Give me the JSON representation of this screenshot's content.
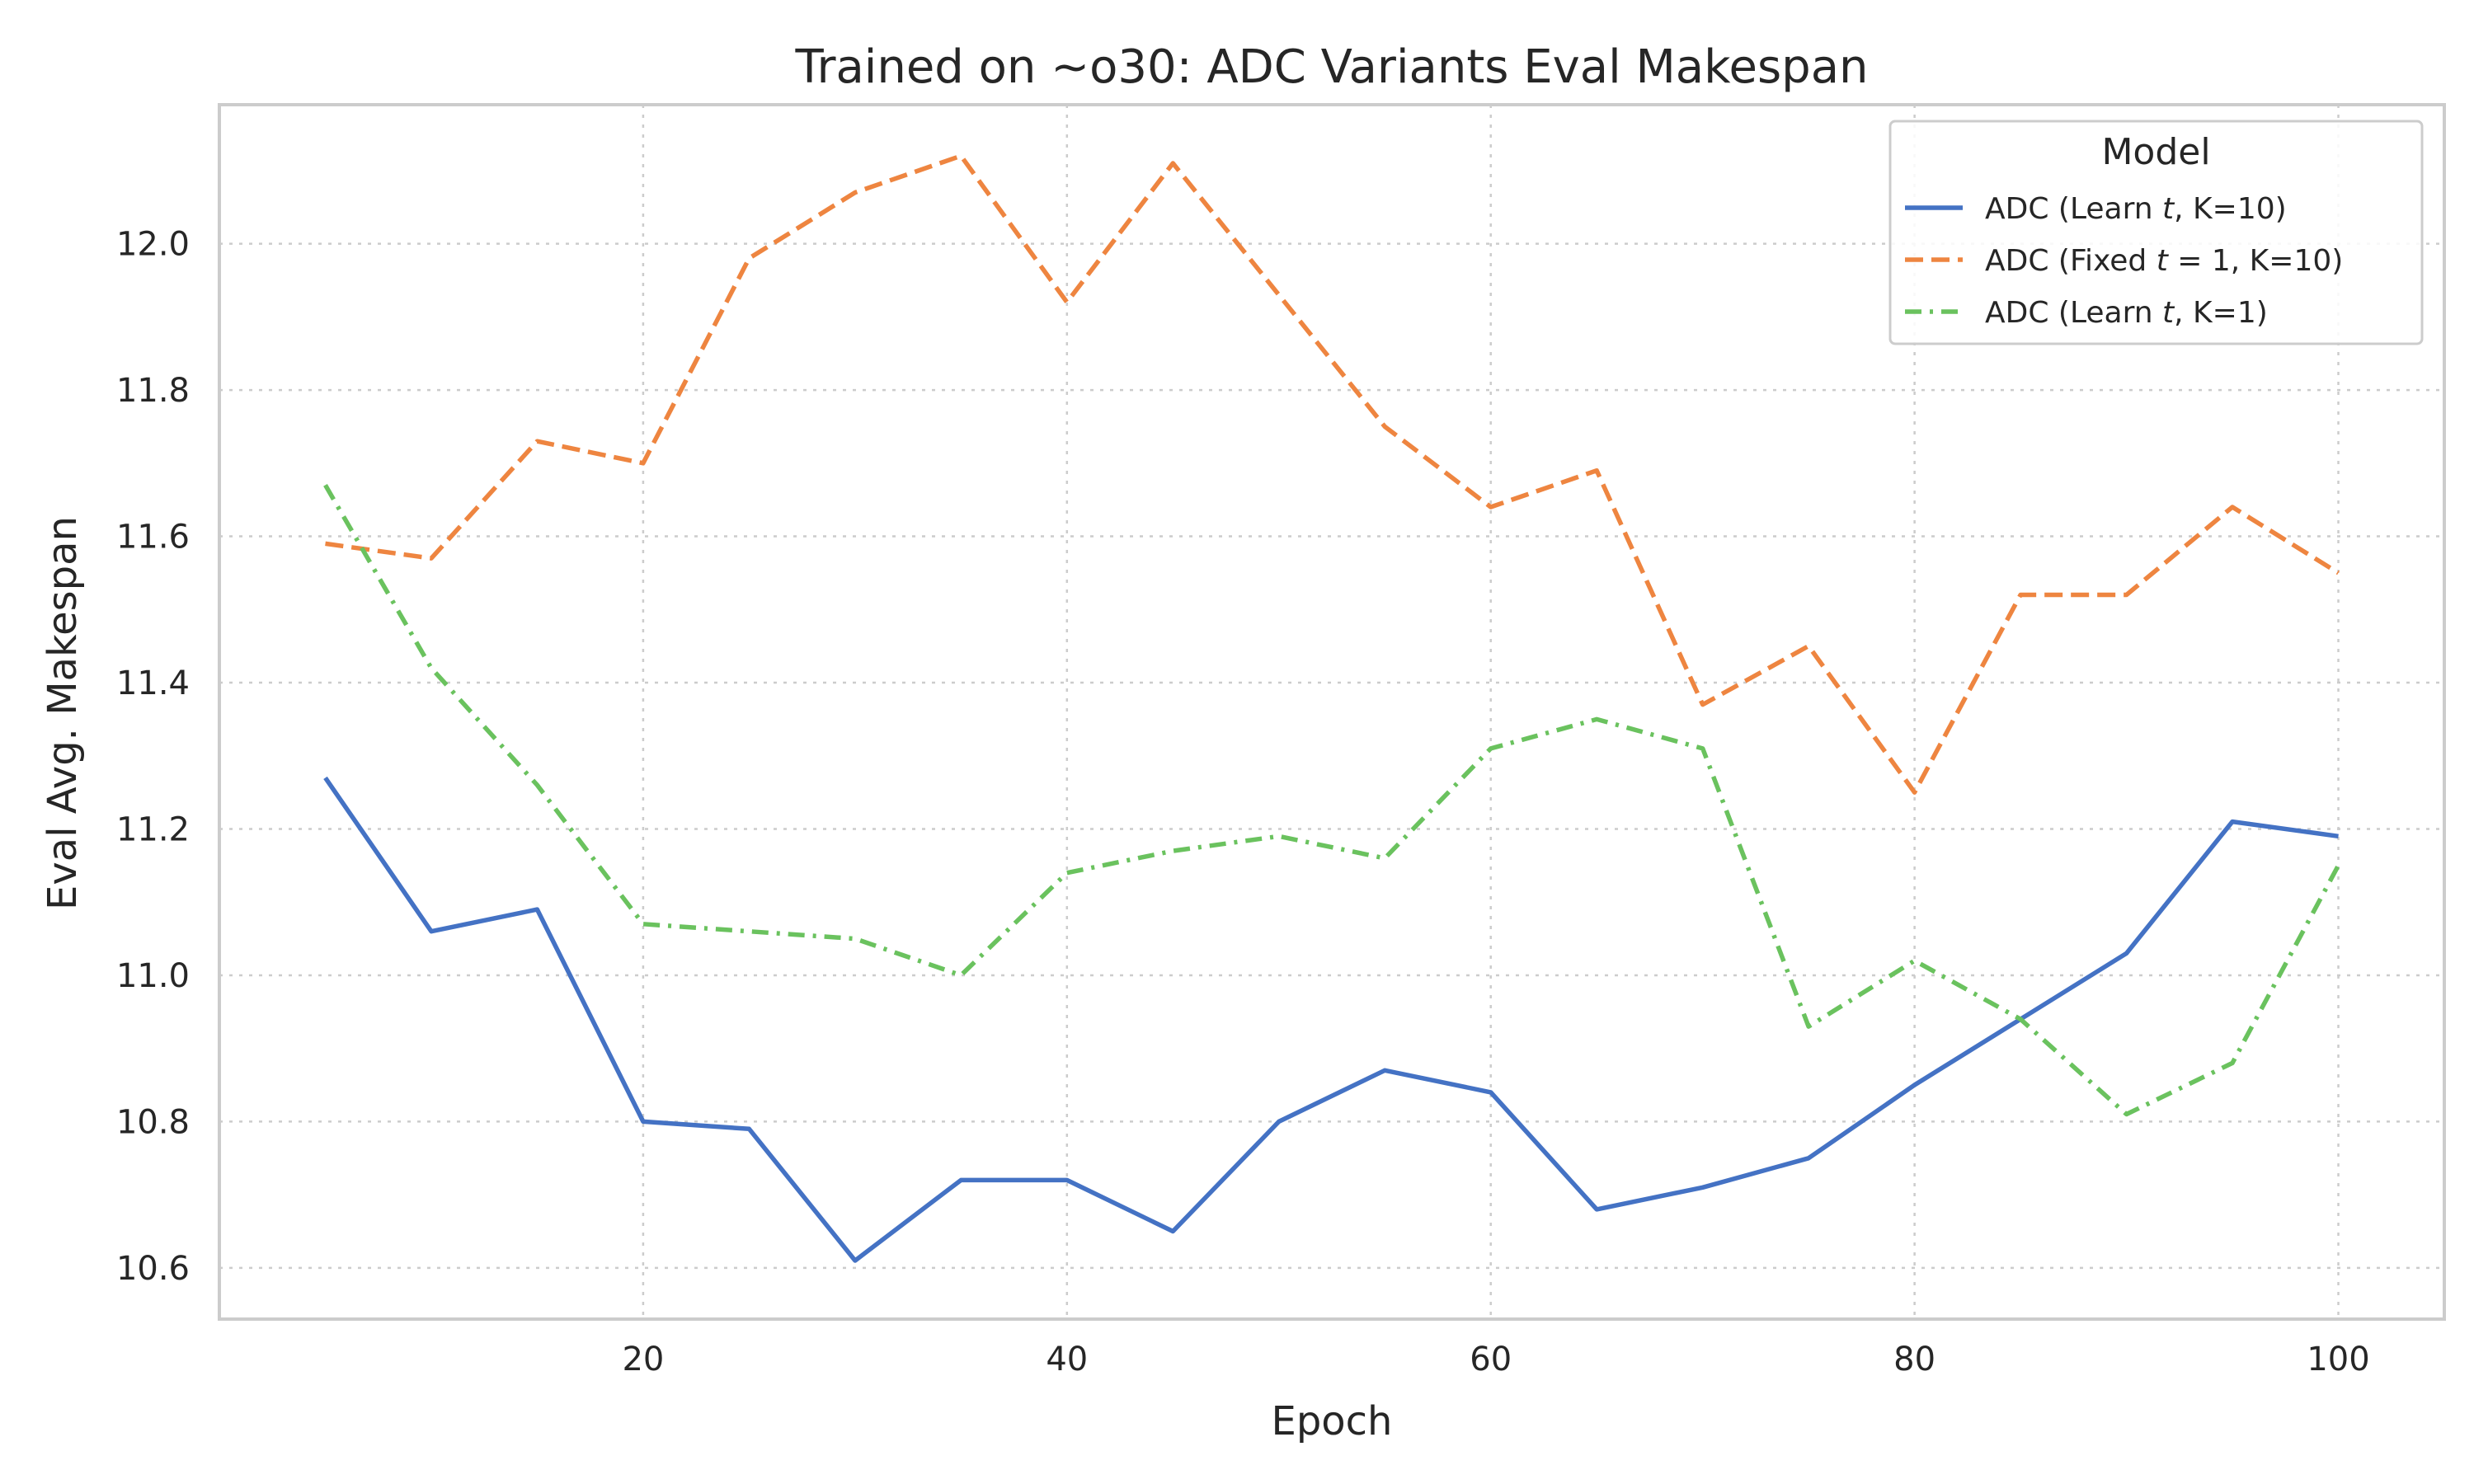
{
  "chart_data": {
    "type": "line",
    "title": "Trained on ~o30: ADC Variants Eval Makespan",
    "xlabel": "Epoch",
    "ylabel": "Eval Avg. Makespan",
    "xlim": [
      0,
      105
    ],
    "ylim": [
      10.53,
      12.19
    ],
    "xticks": [
      20,
      40,
      60,
      80,
      100
    ],
    "yticks": [
      10.6,
      10.8,
      11.0,
      11.2,
      11.4,
      11.6,
      11.8,
      12.0
    ],
    "grid": true,
    "x": [
      5,
      10,
      15,
      20,
      25,
      30,
      35,
      40,
      45,
      50,
      55,
      60,
      65,
      70,
      75,
      80,
      85,
      90,
      95,
      100
    ],
    "legend": {
      "title": "Model",
      "placement": "top-right"
    },
    "series": [
      {
        "name": "ADC (Learn t, K=10)",
        "label_parts": [
          "ADC (Learn ",
          "t",
          ", K=10)"
        ],
        "color": "#4472c4",
        "linestyle": "solid",
        "values": [
          11.27,
          11.06,
          11.09,
          10.8,
          10.79,
          10.61,
          10.72,
          10.72,
          10.65,
          10.8,
          10.87,
          10.84,
          10.68,
          10.71,
          10.75,
          10.85,
          10.94,
          11.03,
          11.21,
          11.19
        ]
      },
      {
        "name": "ADC (Fixed t = 1, K=10)",
        "label_parts": [
          "ADC (Fixed ",
          "t",
          " = 1, K=10)"
        ],
        "color": "#ee8540",
        "linestyle": "dashed",
        "values": [
          11.59,
          11.57,
          11.73,
          11.7,
          11.98,
          12.07,
          12.12,
          11.92,
          12.11,
          11.93,
          11.75,
          11.64,
          11.69,
          11.37,
          11.45,
          11.25,
          11.52,
          11.52,
          11.64,
          11.55
        ]
      },
      {
        "name": "ADC (Learn t, K=1)",
        "label_parts": [
          "ADC (Learn ",
          "t",
          ", K=1)"
        ],
        "color": "#6ac25e",
        "linestyle": "dashdot",
        "values": [
          11.67,
          11.42,
          11.26,
          11.07,
          11.06,
          11.05,
          11.0,
          11.14,
          11.17,
          11.19,
          11.16,
          11.31,
          11.35,
          11.31,
          10.93,
          11.02,
          10.94,
          10.81,
          10.88,
          11.15
        ]
      }
    ]
  }
}
